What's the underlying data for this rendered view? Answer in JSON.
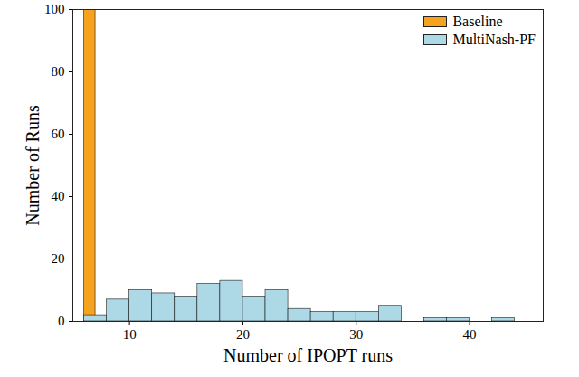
{
  "chart_data": {
    "type": "histogram",
    "x_label": "Number of IPOPT runs",
    "y_label": "Number of Runs",
    "xlim": [
      5,
      46.5
    ],
    "ylim": [
      0,
      100
    ],
    "xticks": [
      10,
      20,
      30,
      40
    ],
    "yticks": [
      0,
      20,
      40,
      60,
      80,
      100
    ],
    "legend": "top-right",
    "grid": false,
    "series": [
      {
        "name": "Baseline",
        "color": "#f5a21e",
        "bins": [
          6,
          7
        ],
        "values": [
          100
        ]
      },
      {
        "name": "MultiNash-PF",
        "color": "#add8e6",
        "bins": [
          6,
          8,
          10,
          12,
          14,
          16,
          18,
          20,
          22,
          24,
          26,
          28,
          30,
          32,
          34,
          36,
          38,
          40,
          42,
          44
        ],
        "values": [
          2,
          7,
          10,
          9,
          8,
          12,
          13,
          8,
          10,
          4,
          3,
          3,
          3,
          5,
          0,
          1,
          1,
          0,
          1
        ]
      }
    ]
  }
}
